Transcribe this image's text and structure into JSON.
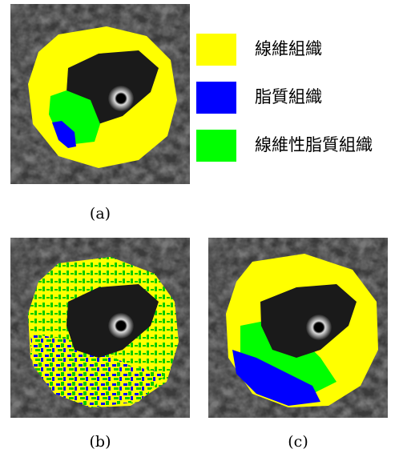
{
  "legend": [
    {
      "label": "線維組織",
      "color": "#ffff00"
    },
    {
      "label": "脂質組織",
      "color": "#0000ff"
    },
    {
      "label": "線維性脂質組織",
      "color": "#00ff00"
    }
  ],
  "captions": {
    "a": "(a)",
    "b": "(b)",
    "c": "(c)"
  }
}
